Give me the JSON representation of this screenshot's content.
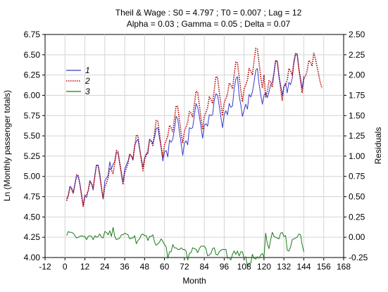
{
  "chart_data": {
    "type": "line",
    "title": "Theil & Wage : S0 = 4.797 ; T0 = 0.007 ; Lag = 12",
    "subtitle": "Alpha = 0.03 ; Gamma = 0.05 ; Delta = 0.07",
    "xlabel": "Month",
    "ylabel": "Ln (Monthly passenger totals)",
    "ylabel_right": "Residuals",
    "xlim": [
      -12,
      168
    ],
    "ylim": [
      4.0,
      6.75
    ],
    "ylim_right": [
      -0.25,
      2.5
    ],
    "x_ticks": [
      "-12",
      "0",
      "12",
      "24",
      "36",
      "48",
      "60",
      "72",
      "84",
      "96",
      "108",
      "120",
      "132",
      "144",
      "156",
      "168"
    ],
    "y_ticks": [
      "4.00",
      "4.25",
      "4.50",
      "4.75",
      "5.00",
      "5.25",
      "5.50",
      "5.75",
      "6.00",
      "6.25",
      "6.50",
      "6.75"
    ],
    "y_ticks_right": [
      "-0.25",
      "0.00",
      "0.25",
      "0.50",
      "0.75",
      "1.00",
      "1.25",
      "1.50",
      "1.75",
      "2.00",
      "2.25",
      "2.50"
    ],
    "grid": true,
    "legend_position": "top-left",
    "series": [
      {
        "name": "1",
        "color": "#3a3acc",
        "style": "solid",
        "axis": "left",
        "x_start": 1,
        "values": [
          4.72,
          4.77,
          4.88,
          4.86,
          4.8,
          4.91,
          5.0,
          5.0,
          4.91,
          4.78,
          4.64,
          4.77,
          4.74,
          4.83,
          4.95,
          4.91,
          4.83,
          5.02,
          5.14,
          5.14,
          5.04,
          4.86,
          4.72,
          4.94,
          4.98,
          5.01,
          5.18,
          5.09,
          5.15,
          5.18,
          5.29,
          5.29,
          5.16,
          5.05,
          4.93,
          5.09,
          5.14,
          5.19,
          5.26,
          5.25,
          5.2,
          5.38,
          5.43,
          5.46,
          5.33,
          5.23,
          5.11,
          5.23,
          5.28,
          5.28,
          5.46,
          5.44,
          5.41,
          5.48,
          5.59,
          5.6,
          5.47,
          5.35,
          5.19,
          5.3,
          5.32,
          5.24,
          5.45,
          5.42,
          5.46,
          5.58,
          5.74,
          5.71,
          5.55,
          5.41,
          5.26,
          5.41,
          5.44,
          5.39,
          5.6,
          5.59,
          5.6,
          5.75,
          5.9,
          5.85,
          5.74,
          5.61,
          5.47,
          5.63,
          5.65,
          5.62,
          5.76,
          5.75,
          5.76,
          5.94,
          6.02,
          6.0,
          5.87,
          5.73,
          5.6,
          5.76,
          5.81,
          5.76,
          5.9,
          5.85,
          5.87,
          6.08,
          6.2,
          6.23,
          6.0,
          5.88,
          5.74,
          5.82,
          5.89,
          5.83,
          6.01,
          5.98,
          6.04,
          6.16,
          6.31,
          6.33,
          6.14,
          6.01,
          5.89,
          6.0,
          6.03,
          5.97,
          6.04,
          6.13,
          6.16,
          6.28,
          6.43,
          6.41,
          6.23,
          6.13,
          6.0,
          6.11,
          6.15,
          6.03,
          6.16,
          6.13,
          6.21,
          6.39,
          6.5,
          6.5,
          6.33,
          6.21,
          6.08,
          6.24
        ]
      },
      {
        "name": "2",
        "color": "#b00000",
        "style": "dotted",
        "axis": "left",
        "x_start": 1,
        "values": [
          4.7,
          4.76,
          4.86,
          4.84,
          4.79,
          4.9,
          5.02,
          5.01,
          4.9,
          4.76,
          4.63,
          4.76,
          4.77,
          4.82,
          4.93,
          4.91,
          4.86,
          5.0,
          5.14,
          5.13,
          5.0,
          4.86,
          4.73,
          4.87,
          4.92,
          4.98,
          5.1,
          5.08,
          5.03,
          5.17,
          5.32,
          5.31,
          5.17,
          5.02,
          4.9,
          5.04,
          5.1,
          5.16,
          5.28,
          5.26,
          5.21,
          5.36,
          5.51,
          5.5,
          5.35,
          5.2,
          5.07,
          5.21,
          5.26,
          5.32,
          5.45,
          5.43,
          5.38,
          5.54,
          5.69,
          5.68,
          5.53,
          5.37,
          5.24,
          5.39,
          5.44,
          5.5,
          5.63,
          5.6,
          5.55,
          5.71,
          5.87,
          5.86,
          5.7,
          5.54,
          5.41,
          5.56,
          5.61,
          5.67,
          5.8,
          5.78,
          5.73,
          5.89,
          6.05,
          6.04,
          5.88,
          5.72,
          5.58,
          5.74,
          5.79,
          5.85,
          5.98,
          5.95,
          5.9,
          6.07,
          6.23,
          6.22,
          6.05,
          5.89,
          5.75,
          5.91,
          5.96,
          6.02,
          6.15,
          6.13,
          6.08,
          6.25,
          6.41,
          6.4,
          6.23,
          6.06,
          5.92,
          6.08,
          6.13,
          6.19,
          6.33,
          6.3,
          6.25,
          6.42,
          6.58,
          6.57,
          6.4,
          6.23,
          6.09,
          6.25,
          5.98,
          6.05,
          6.18,
          6.16,
          6.1,
          6.27,
          6.43,
          6.42,
          6.25,
          6.08,
          5.94,
          6.1,
          6.13,
          6.19,
          6.33,
          6.3,
          6.25,
          6.42,
          6.52,
          6.51,
          6.33,
          6.17,
          6.03,
          6.2,
          6.24,
          6.3,
          6.43,
          6.41,
          6.36,
          6.52,
          6.45,
          6.35,
          6.25,
          6.15,
          6.09
        ]
      },
      {
        "name": "3",
        "color": "#1a7a1a",
        "style": "solid",
        "axis": "right",
        "x_start": 1,
        "values": [
          0.02,
          0.07,
          0.06,
          0.06,
          0.05,
          0.02,
          -0.01,
          0.0,
          0.01,
          0.02,
          0.01,
          0.01,
          -0.03,
          0.01,
          0.02,
          0.01,
          -0.03,
          0.02,
          0.0,
          0.01,
          0.04,
          0.0,
          -0.01,
          0.07,
          0.06,
          0.03,
          0.08,
          0.01,
          0.12,
          0.01,
          -0.03,
          -0.02,
          -0.01,
          0.03,
          0.03,
          0.05,
          0.04,
          0.03,
          -0.02,
          -0.01,
          -0.01,
          0.02,
          -0.08,
          -0.04,
          -0.02,
          0.03,
          0.04,
          0.02,
          0.02,
          -0.04,
          0.01,
          0.01,
          0.03,
          -0.06,
          -0.1,
          -0.08,
          -0.06,
          -0.02,
          -0.05,
          -0.09,
          -0.12,
          -0.26,
          -0.18,
          -0.18,
          -0.09,
          -0.13,
          -0.13,
          -0.15,
          -0.15,
          -0.13,
          -0.15,
          -0.15,
          -0.17,
          -0.28,
          -0.2,
          -0.19,
          -0.13,
          -0.14,
          -0.15,
          -0.19,
          -0.14,
          -0.11,
          -0.11,
          -0.11,
          -0.14,
          -0.23,
          -0.22,
          -0.2,
          -0.14,
          -0.13,
          -0.21,
          -0.22,
          -0.18,
          -0.16,
          -0.15,
          -0.15,
          -0.15,
          -0.26,
          -0.25,
          -0.28,
          -0.21,
          -0.17,
          -0.21,
          -0.17,
          -0.23,
          -0.18,
          -0.18,
          -0.26,
          -0.24,
          -0.36,
          -0.32,
          -0.32,
          -0.21,
          -0.26,
          -0.27,
          -0.24,
          -0.26,
          -0.22,
          -0.2,
          -0.25,
          0.05,
          -0.08,
          -0.14,
          -0.03,
          0.06,
          0.01,
          0.0,
          -0.01,
          -0.02,
          0.05,
          0.06,
          0.01,
          0.02,
          -0.16,
          -0.17,
          -0.12,
          -0.03,
          -0.02,
          -0.01,
          0.0,
          0.04,
          0.03,
          -0.09,
          -0.18
        ]
      }
    ]
  }
}
